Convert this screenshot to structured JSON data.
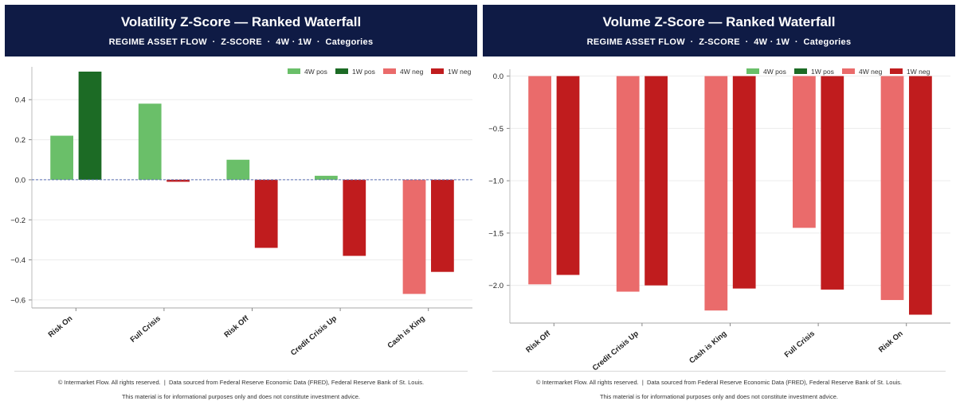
{
  "colors": {
    "pos4w": "#6abf69",
    "pos1w": "#1c6b25",
    "neg4w": "#ea6b6b",
    "neg1w": "#c01c1e",
    "header": "#0f1b45",
    "zero_line": "#5a6fb5"
  },
  "legend": [
    {
      "label": "4W pos",
      "color": "#6abf69"
    },
    {
      "label": "1W pos",
      "color": "#1c6b25"
    },
    {
      "label": "4W neg",
      "color": "#ea6b6b"
    },
    {
      "label": "1W neg",
      "color": "#c01c1e"
    }
  ],
  "footer": {
    "line1": "© Intermarket Flow. All rights reserved.  |  Data sourced from Federal Reserve Economic Data (FRED), Federal Reserve Bank of St. Louis.",
    "line2": "This material is for informational purposes only and does not constitute investment advice."
  },
  "chart_data": [
    {
      "type": "bar",
      "title": "Volatility Z-Score — Ranked Waterfall",
      "subtitle": "REGIME ASSET FLOW  ·  Z-SCORE  ·  4W · 1W  ·  Categories",
      "categories": [
        "Risk On",
        "Full Crisis",
        "Risk Off",
        "Credit Crisis Up",
        "Cash is King"
      ],
      "series": [
        {
          "name": "4W",
          "values": [
            0.22,
            0.38,
            0.1,
            0.02,
            -0.57
          ]
        },
        {
          "name": "1W",
          "values": [
            0.54,
            -0.01,
            -0.34,
            -0.38,
            -0.46
          ]
        }
      ],
      "yticks": [
        0.4,
        0.2,
        0.0,
        -0.2,
        -0.4,
        -0.6
      ],
      "ytick_labels": [
        "0.4",
        "0.2",
        "0.0",
        "−0.2",
        "−0.4",
        "−0.6"
      ],
      "ylim": [
        -0.64,
        0.54
      ],
      "zero_line": true,
      "legend_position": "top-right",
      "xlabel": "",
      "ylabel": ""
    },
    {
      "type": "bar",
      "title": "Volume Z-Score — Ranked Waterfall",
      "subtitle": "REGIME ASSET FLOW  ·  Z-SCORE  ·  4W · 1W  ·  Categories",
      "categories": [
        "Risk Off",
        "Credit Crisis Up",
        "Cash is King",
        "Full Crisis",
        "Risk On"
      ],
      "series": [
        {
          "name": "4W",
          "values": [
            -1.99,
            -2.06,
            -2.24,
            -1.45,
            -2.14
          ]
        },
        {
          "name": "1W",
          "values": [
            -1.9,
            -2.0,
            -2.03,
            -2.04,
            -2.28
          ]
        }
      ],
      "yticks": [
        0.0,
        -0.5,
        -1.0,
        -1.5,
        -2.0
      ],
      "ytick_labels": [
        "0.0",
        "−0.5",
        "−1.0",
        "−1.5",
        "−2.0"
      ],
      "ylim": [
        -2.36,
        0.02
      ],
      "zero_line": false,
      "legend_position": "top-right",
      "xlabel": "",
      "ylabel": ""
    }
  ]
}
